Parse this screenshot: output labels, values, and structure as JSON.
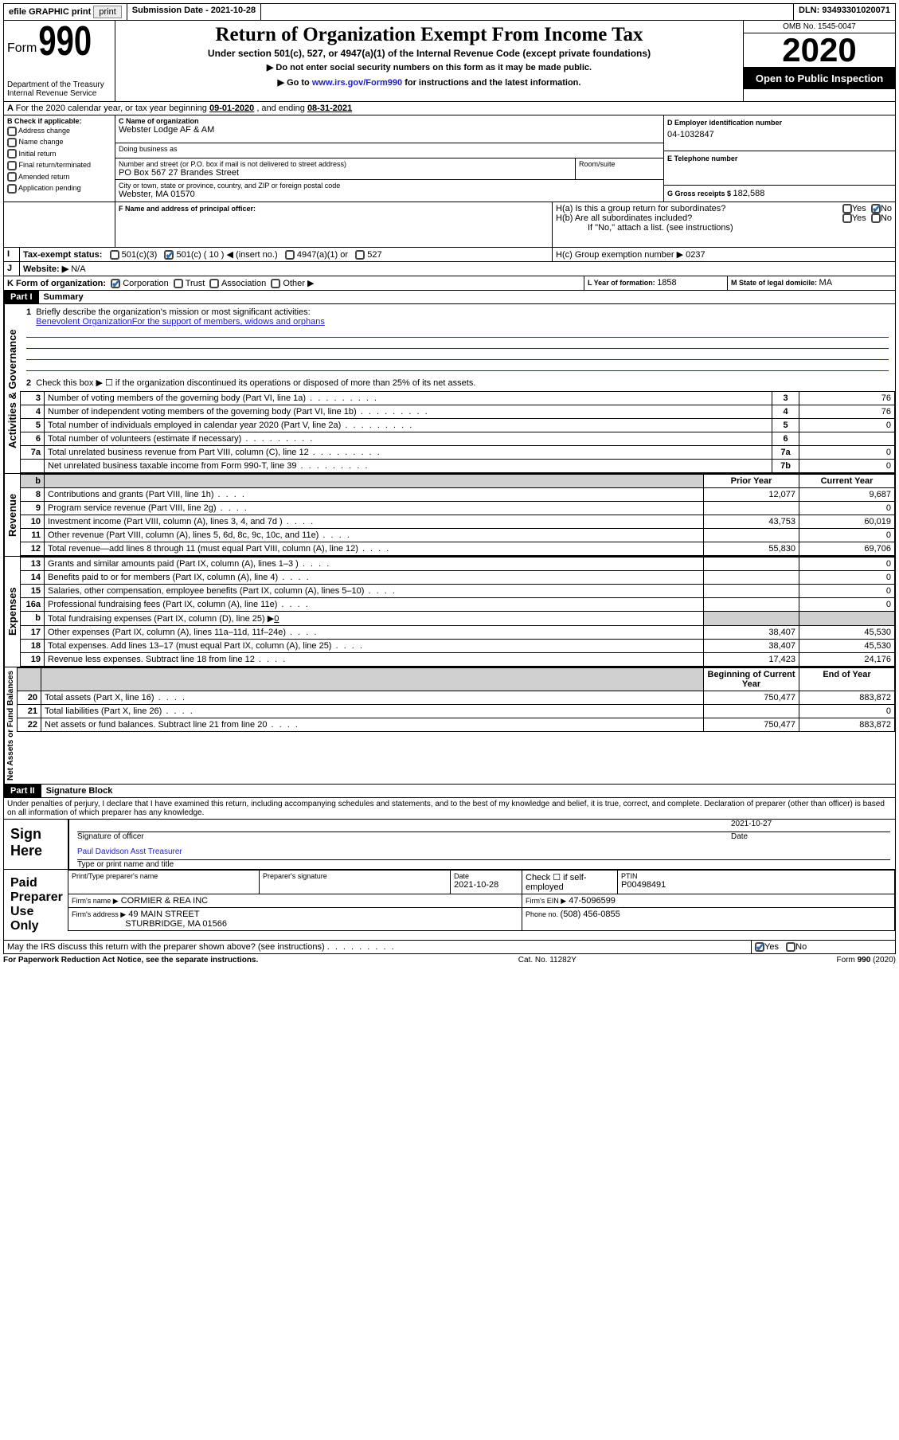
{
  "colors": {
    "link": "#2020cc",
    "check": "#2a6db0",
    "shade": "#d0d0d0"
  },
  "topbar": {
    "efile": "efile GRAPHIC print",
    "sub_label": "Submission Date - ",
    "sub_date": "2021-10-28",
    "dln_label": "DLN: ",
    "dln": "93493301020071"
  },
  "header": {
    "form_word": "Form",
    "form_num": "990",
    "dept1": "Department of the Treasury",
    "dept2": "Internal Revenue Service",
    "title": "Return of Organization Exempt From Income Tax",
    "sub1": "Under section 501(c), 527, or 4947(a)(1) of the Internal Revenue Code (except private foundations)",
    "sub2": "▶ Do not enter social security numbers on this form as it may be made public.",
    "sub3a": "▶ Go to ",
    "sub3_link": "www.irs.gov/Form990",
    "sub3b": " for instructions and the latest information.",
    "omb": "OMB No. 1545-0047",
    "year": "2020",
    "inspect": "Open to Public Inspection"
  },
  "lineA": {
    "text_a": "For the 2020 calendar year, or tax year beginning ",
    "begin": "09-01-2020",
    "text_b": " , and ending ",
    "end": "08-31-2021"
  },
  "boxB": {
    "title": "B Check if applicable:",
    "items": [
      "Address change",
      "Name change",
      "Initial return",
      "Final return/terminated",
      "Amended return",
      "Application pending"
    ]
  },
  "boxC": {
    "name_label": "C Name of organization",
    "name": "Webster Lodge AF & AM",
    "dba_label": "Doing business as",
    "dba": "",
    "street_label": "Number and street (or P.O. box if mail is not delivered to street address)",
    "room_label": "Room/suite",
    "street": "PO Box 567 27 Brandes Street",
    "city_label": "City or town, state or province, country, and ZIP or foreign postal code",
    "city": "Webster, MA  01570"
  },
  "boxD": {
    "label": "D Employer identification number",
    "value": "04-1032847"
  },
  "boxE": {
    "label": "E Telephone number",
    "value": ""
  },
  "boxF": {
    "label": "F  Name and address of principal officer:",
    "value": ""
  },
  "boxG": {
    "label": "G Gross receipts $ ",
    "value": "182,588"
  },
  "boxH": {
    "a": "H(a)  Is this a group return for subordinates?",
    "b": "H(b)  Are all subordinates included?",
    "b_note": "If \"No,\" attach a list. (see instructions)",
    "c": "H(c)  Group exemption number ▶   ",
    "c_val": "0237",
    "yes": "Yes",
    "no": "No"
  },
  "boxI": {
    "label": "Tax-exempt status:",
    "opt1": "501(c)(3)",
    "opt2a": "501(c) ( ",
    "opt2_num": "10",
    "opt2b": " ) ◀ (insert no.)",
    "opt3": "4947(a)(1) or",
    "opt4": "527"
  },
  "boxJ": {
    "label": "Website: ▶",
    "value": "N/A"
  },
  "boxK": {
    "label": "K Form of organization:",
    "opts": [
      "Corporation",
      "Trust",
      "Association",
      "Other ▶"
    ]
  },
  "boxL": {
    "label": "L Year of formation: ",
    "value": "1858"
  },
  "boxM": {
    "label": "M State of legal domicile: ",
    "value": "MA"
  },
  "part1": {
    "tag": "Part I",
    "title": "Summary",
    "q1a": "Briefly describe the organization's mission or most significant activities:",
    "q1b": "Benevolent OrganizationFor the support of members, widows and orphans",
    "q2": "Check this box ▶ ☐  if the organization discontinued its operations or disposed of more than 25% of its net assets.",
    "sideA": "Activities & Governance",
    "sideB": "Revenue",
    "sideC": "Expenses",
    "sideD": "Net Assets or Fund Balances",
    "hdr_prior": "Prior Year",
    "hdr_curr": "Current Year",
    "hdr_beg": "Beginning of Current Year",
    "hdr_end": "End of Year",
    "lines_top": [
      {
        "n": "3",
        "d": "Number of voting members of the governing body (Part VI, line 1a)",
        "lab": "3",
        "v": "76"
      },
      {
        "n": "4",
        "d": "Number of independent voting members of the governing body (Part VI, line 1b)",
        "lab": "4",
        "v": "76"
      },
      {
        "n": "5",
        "d": "Total number of individuals employed in calendar year 2020 (Part V, line 2a)",
        "lab": "5",
        "v": "0"
      },
      {
        "n": "6",
        "d": "Total number of volunteers (estimate if necessary)",
        "lab": "6",
        "v": ""
      },
      {
        "n": "7a",
        "d": "Total unrelated business revenue from Part VIII, column (C), line 12",
        "lab": "7a",
        "v": "0"
      },
      {
        "n": "",
        "d": "Net unrelated business taxable income from Form 990-T, line 39",
        "lab": "7b",
        "v": "0"
      }
    ],
    "rev": [
      {
        "n": "8",
        "d": "Contributions and grants (Part VIII, line 1h)",
        "p": "12,077",
        "c": "9,687"
      },
      {
        "n": "9",
        "d": "Program service revenue (Part VIII, line 2g)",
        "p": "",
        "c": "0"
      },
      {
        "n": "10",
        "d": "Investment income (Part VIII, column (A), lines 3, 4, and 7d )",
        "p": "43,753",
        "c": "60,019"
      },
      {
        "n": "11",
        "d": "Other revenue (Part VIII, column (A), lines 5, 6d, 8c, 9c, 10c, and 11e)",
        "p": "",
        "c": "0"
      },
      {
        "n": "12",
        "d": "Total revenue—add lines 8 through 11 (must equal Part VIII, column (A), line 12)",
        "p": "55,830",
        "c": "69,706"
      }
    ],
    "exp": [
      {
        "n": "13",
        "d": "Grants and similar amounts paid (Part IX, column (A), lines 1–3 )",
        "p": "",
        "c": "0"
      },
      {
        "n": "14",
        "d": "Benefits paid to or for members (Part IX, column (A), line 4)",
        "p": "",
        "c": "0"
      },
      {
        "n": "15",
        "d": "Salaries, other compensation, employee benefits (Part IX, column (A), lines 5–10)",
        "p": "",
        "c": "0"
      },
      {
        "n": "16a",
        "d": "Professional fundraising fees (Part IX, column (A), line 11e)",
        "p": "",
        "c": "0"
      }
    ],
    "exp_b": {
      "n": "b",
      "d": "Total fundraising expenses (Part IX, column (D), line 25) ▶",
      "v": "0"
    },
    "exp2": [
      {
        "n": "17",
        "d": "Other expenses (Part IX, column (A), lines 11a–11d, 11f–24e)",
        "p": "38,407",
        "c": "45,530"
      },
      {
        "n": "18",
        "d": "Total expenses. Add lines 13–17 (must equal Part IX, column (A), line 25)",
        "p": "38,407",
        "c": "45,530"
      },
      {
        "n": "19",
        "d": "Revenue less expenses. Subtract line 18 from line 12",
        "p": "17,423",
        "c": "24,176"
      }
    ],
    "net": [
      {
        "n": "20",
        "d": "Total assets (Part X, line 16)",
        "p": "750,477",
        "c": "883,872"
      },
      {
        "n": "21",
        "d": "Total liabilities (Part X, line 26)",
        "p": "",
        "c": "0"
      },
      {
        "n": "22",
        "d": "Net assets or fund balances. Subtract line 21 from line 20",
        "p": "750,477",
        "c": "883,872"
      }
    ]
  },
  "part2": {
    "tag": "Part II",
    "title": "Signature Block",
    "jurat": "Under penalties of perjury, I declare that I have examined this return, including accompanying schedules and statements, and to the best of my knowledge and belief, it is true, correct, and complete. Declaration of preparer (other than officer) is based on all information of which preparer has any knowledge.",
    "sign_here": "Sign Here",
    "sig_officer": "Signature of officer",
    "sig_date": "Date",
    "sig_date_val": "2021-10-27",
    "officer_name": "Paul Davidson  Asst Treasurer",
    "type_name": "Type or print name and title",
    "paid_prep": "Paid Preparer Use Only",
    "prep_name_l": "Print/Type preparer's name",
    "prep_sig_l": "Preparer's signature",
    "prep_date_l": "Date",
    "prep_date": "2021-10-28",
    "self_emp": "Check ☐ if self-employed",
    "ptin_l": "PTIN",
    "ptin": "P00498491",
    "firm_name_l": "Firm's name     ▶",
    "firm_name": "CORMIER & REA INC",
    "firm_ein_l": "Firm's EIN ▶",
    "firm_ein": "47-5096599",
    "firm_addr_l": "Firm's address ▶",
    "firm_addr1": "49 MAIN STREET",
    "firm_addr2": "STURBRIDGE, MA  01566",
    "phone_l": "Phone no. ",
    "phone": "(508) 456-0855",
    "discuss": "May the IRS discuss this return with the preparer shown above? (see instructions)"
  },
  "footer": {
    "left": "For Paperwork Reduction Act Notice, see the separate instructions.",
    "mid": "Cat. No. 11282Y",
    "right": "Form 990 (2020)"
  }
}
